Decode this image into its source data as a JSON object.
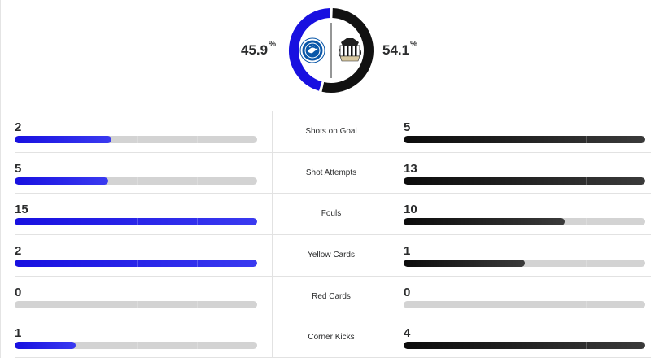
{
  "possession": {
    "home": {
      "value": "45.9",
      "unit": "%",
      "fraction": 0.459,
      "color": "#1810e0",
      "logo": "brighton-crest-icon"
    },
    "away": {
      "value": "54.1",
      "unit": "%",
      "fraction": 0.541,
      "color": "#111111",
      "logo": "newcastle-crest-icon"
    }
  },
  "colors": {
    "home_bar": "#1810e0",
    "away_bar": "#111111",
    "track": "#d3d3d3"
  },
  "stats": [
    {
      "label": "Shots on Goal",
      "home": "2",
      "away": "5",
      "home_fraction": 0.4,
      "away_fraction": 1.0
    },
    {
      "label": "Shot Attempts",
      "home": "5",
      "away": "13",
      "home_fraction": 0.385,
      "away_fraction": 1.0
    },
    {
      "label": "Fouls",
      "home": "15",
      "away": "10",
      "home_fraction": 1.0,
      "away_fraction": 0.667
    },
    {
      "label": "Yellow Cards",
      "home": "2",
      "away": "1",
      "home_fraction": 1.0,
      "away_fraction": 0.5
    },
    {
      "label": "Red Cards",
      "home": "0",
      "away": "0",
      "home_fraction": 0.0,
      "away_fraction": 0.0
    },
    {
      "label": "Corner Kicks",
      "home": "1",
      "away": "4",
      "home_fraction": 0.25,
      "away_fraction": 1.0
    }
  ]
}
